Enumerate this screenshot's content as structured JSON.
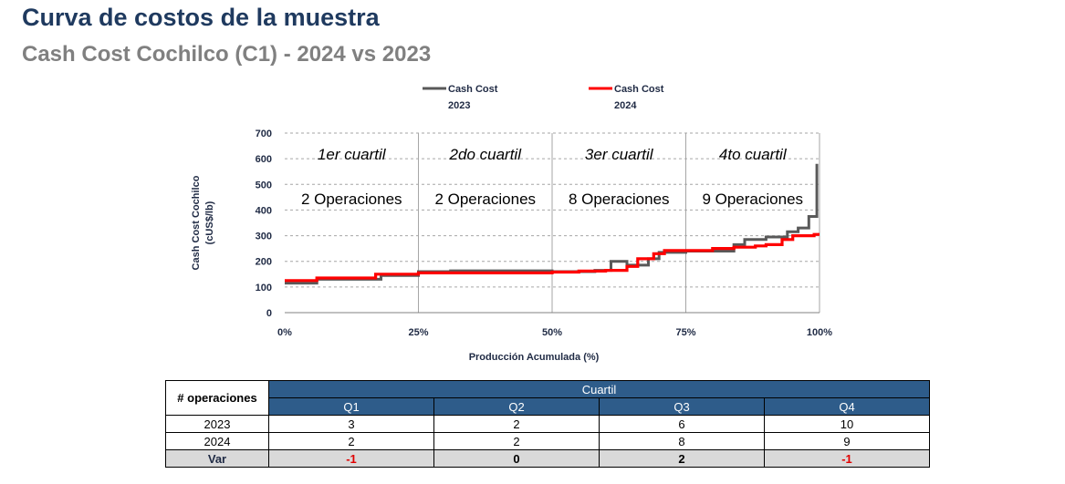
{
  "header": {
    "title": "Curva de costos de la muestra",
    "subtitle": "Cash Cost Cochilco (C1) - 2024 vs 2023"
  },
  "chart_data": {
    "type": "line",
    "xlabel": "Producción Acumulada (%)",
    "ylabel_line1": "Cash Cost Cochilco",
    "ylabel_line2": "(cUS$/lb)",
    "xlim": [
      0,
      100
    ],
    "ylim": [
      0,
      700
    ],
    "x_ticks": [
      "0%",
      "25%",
      "50%",
      "75%",
      "100%"
    ],
    "y_ticks": [
      "0",
      "100",
      "200",
      "300",
      "400",
      "500",
      "600",
      "700"
    ],
    "grid": "horizontal dashed",
    "legend": {
      "placement": "top",
      "entries": [
        {
          "line1": "Cash Cost",
          "line2": "2023",
          "color": "#595959"
        },
        {
          "line1": "Cash Cost",
          "line2": "2024",
          "color": "#ff0000"
        }
      ]
    },
    "quartiles": [
      {
        "label": "1er cuartil",
        "ops": "2 Operaciones"
      },
      {
        "label": "2do cuartil",
        "ops": "2 Operaciones"
      },
      {
        "label": "3er cuartil",
        "ops": "8 Operaciones"
      },
      {
        "label": "4to cuartil",
        "ops": "9 Operaciones"
      }
    ],
    "series": [
      {
        "name": "Cash Cost 2023",
        "color": "#595959",
        "steps": [
          [
            0,
            115
          ],
          [
            6,
            115
          ],
          [
            6,
            130
          ],
          [
            18,
            130
          ],
          [
            18,
            145
          ],
          [
            25,
            145
          ],
          [
            25,
            160
          ],
          [
            31,
            160
          ],
          [
            31,
            163
          ],
          [
            50,
            163
          ],
          [
            50,
            160
          ],
          [
            58,
            160
          ],
          [
            58,
            165
          ],
          [
            61,
            165
          ],
          [
            61,
            200
          ],
          [
            64,
            200
          ],
          [
            64,
            185
          ],
          [
            68,
            185
          ],
          [
            68,
            210
          ],
          [
            70,
            210
          ],
          [
            70,
            235
          ],
          [
            75,
            235
          ],
          [
            75,
            240
          ],
          [
            84,
            240
          ],
          [
            84,
            265
          ],
          [
            86,
            265
          ],
          [
            86,
            285
          ],
          [
            90,
            285
          ],
          [
            90,
            295
          ],
          [
            94,
            295
          ],
          [
            94,
            315
          ],
          [
            96,
            315
          ],
          [
            96,
            330
          ],
          [
            98,
            330
          ],
          [
            98,
            375
          ],
          [
            99.5,
            375
          ],
          [
            99.5,
            580
          ]
        ]
      },
      {
        "name": "Cash Cost 2024",
        "color": "#ff0000",
        "steps": [
          [
            0,
            125
          ],
          [
            6,
            125
          ],
          [
            6,
            135
          ],
          [
            17,
            135
          ],
          [
            17,
            150
          ],
          [
            25,
            150
          ],
          [
            25,
            155
          ],
          [
            50,
            155
          ],
          [
            50,
            158
          ],
          [
            55,
            158
          ],
          [
            55,
            162
          ],
          [
            60,
            162
          ],
          [
            60,
            165
          ],
          [
            64,
            165
          ],
          [
            64,
            180
          ],
          [
            66,
            180
          ],
          [
            66,
            210
          ],
          [
            69,
            210
          ],
          [
            69,
            230
          ],
          [
            71,
            230
          ],
          [
            71,
            242
          ],
          [
            80,
            242
          ],
          [
            80,
            250
          ],
          [
            84,
            250
          ],
          [
            84,
            255
          ],
          [
            88,
            255
          ],
          [
            88,
            260
          ],
          [
            90,
            260
          ],
          [
            90,
            265
          ],
          [
            93,
            265
          ],
          [
            93,
            285
          ],
          [
            95,
            285
          ],
          [
            95,
            300
          ],
          [
            99,
            300
          ],
          [
            99,
            305
          ],
          [
            100,
            305
          ]
        ]
      }
    ]
  },
  "table": {
    "corner": "# operaciones",
    "group_header": "Cuartil",
    "columns": [
      "Q1",
      "Q2",
      "Q3",
      "Q4"
    ],
    "rows": [
      {
        "label": "2023",
        "values": [
          "3",
          "2",
          "6",
          "10"
        ]
      },
      {
        "label": "2024",
        "values": [
          "2",
          "2",
          "8",
          "9"
        ]
      }
    ],
    "var_row": {
      "label": "Var",
      "values": [
        "-1",
        "0",
        "2",
        "-1"
      ],
      "negative": [
        true,
        false,
        false,
        true
      ]
    }
  }
}
